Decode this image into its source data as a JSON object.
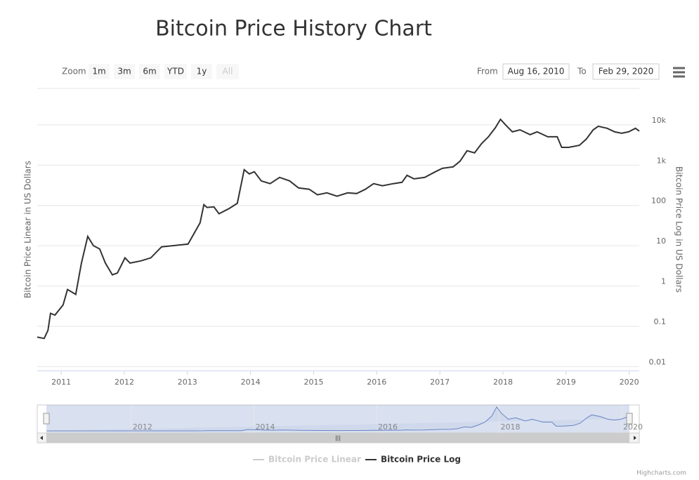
{
  "chart_data": {
    "type": "line",
    "title": "Bitcoin Price History Chart",
    "range_selector": {
      "label": "Zoom",
      "buttons": [
        "1m",
        "3m",
        "6m",
        "YTD",
        "1y",
        "All"
      ],
      "from_label": "From",
      "from": "Aug 16, 2010",
      "to_label": "To",
      "to": "Feb 29, 2020"
    },
    "y_label": "Bitcoin Price Linear in US Dollars",
    "y2_label": "Bitcoin Price Log in US Dollars",
    "log_scale": true,
    "grid": true,
    "credits": "Highcharts.com",
    "xlim": [
      2010.62,
      2020.16
    ],
    "xticks": [
      2011,
      2012,
      2013,
      2014,
      2015,
      2016,
      2017,
      2018,
      2019,
      2020
    ],
    "ylim": [
      0.008,
      80000
    ],
    "yticks": [
      0.01,
      0.1,
      1,
      10,
      100,
      {
        "value": 1000,
        "label": "1k"
      },
      {
        "value": 10000,
        "label": "10k"
      }
    ],
    "navigator_xticks": [
      2012,
      2014,
      2016,
      2018,
      2020
    ],
    "x": [
      2010.62,
      2010.73,
      2010.79,
      2010.83,
      2010.9,
      2011.03,
      2011.1,
      2011.23,
      2011.32,
      2011.42,
      2011.51,
      2011.61,
      2011.7,
      2011.81,
      2011.89,
      2012.01,
      2012.09,
      2012.26,
      2012.42,
      2012.59,
      2012.81,
      2013.01,
      2013.2,
      2013.26,
      2013.31,
      2013.42,
      2013.5,
      2013.65,
      2013.79,
      2013.9,
      2013.98,
      2014.06,
      2014.17,
      2014.31,
      2014.46,
      2014.62,
      2014.76,
      2014.93,
      2015.06,
      2015.21,
      2015.37,
      2015.54,
      2015.68,
      2015.82,
      2015.95,
      2016.09,
      2016.26,
      2016.4,
      2016.48,
      2016.59,
      2016.76,
      2016.93,
      2017.04,
      2017.21,
      2017.32,
      2017.43,
      2017.55,
      2017.66,
      2017.77,
      2017.88,
      2017.96,
      2018.04,
      2018.15,
      2018.27,
      2018.43,
      2018.54,
      2018.71,
      2018.86,
      2018.93,
      2019.04,
      2019.21,
      2019.32,
      2019.43,
      2019.51,
      2019.65,
      2019.77,
      2019.88,
      2019.99,
      2020.1,
      2020.16
    ],
    "series": [
      {
        "name": "Bitcoin Price Linear",
        "color": "#cccccc",
        "visible": false
      },
      {
        "name": "Bitcoin Price Log",
        "color": "#333333",
        "visible": true,
        "values": [
          0.054,
          0.05,
          0.08,
          0.21,
          0.19,
          0.34,
          0.82,
          0.62,
          3.7,
          17,
          10,
          8.3,
          3.7,
          1.9,
          2.1,
          5,
          3.7,
          4.2,
          5,
          9.4,
          10.2,
          11,
          37,
          104,
          89,
          92,
          62,
          82,
          113,
          770,
          605,
          685,
          405,
          347,
          495,
          405,
          272,
          252,
          183,
          205,
          169,
          205,
          197,
          252,
          347,
          308,
          347,
          375,
          560,
          455,
          495,
          685,
          830,
          905,
          1250,
          2270,
          2020,
          3400,
          5050,
          8500,
          13700,
          10000,
          6700,
          7500,
          5700,
          6700,
          5050,
          5050,
          2760,
          2760,
          3100,
          4400,
          7500,
          9200,
          8200,
          6700,
          6200,
          6700,
          8200,
          7000
        ]
      }
    ]
  }
}
